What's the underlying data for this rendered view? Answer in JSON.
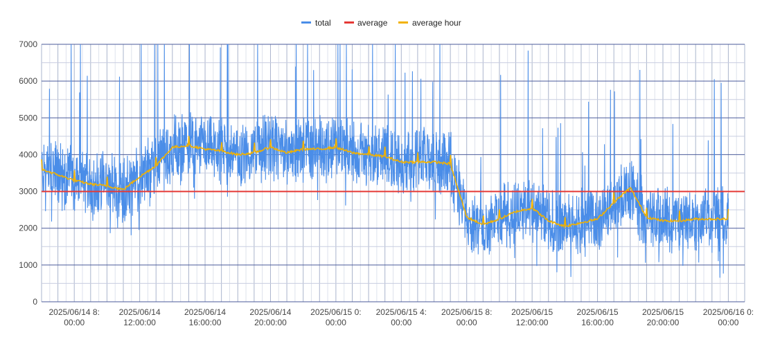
{
  "chart_data": {
    "type": "line",
    "title": "",
    "xlabel": "",
    "ylabel": "",
    "ylim": [
      0,
      7000
    ],
    "yticks": [
      0,
      1000,
      2000,
      3000,
      4000,
      5000,
      6000,
      7000
    ],
    "x_range": [
      "2025/06/14 6:00:00",
      "2025/06/16 1:00:00"
    ],
    "x_ticks": [
      {
        "x": "2025/06/14 8:00:00",
        "line1": "2025/06/14 8:",
        "line2": "00:00"
      },
      {
        "x": "2025/06/14 12:00:00",
        "line1": "2025/06/14",
        "line2": "12:00:00"
      },
      {
        "x": "2025/06/14 16:00:00",
        "line1": "2025/06/14",
        "line2": "16:00:00"
      },
      {
        "x": "2025/06/14 20:00:00",
        "line1": "2025/06/14",
        "line2": "20:00:00"
      },
      {
        "x": "2025/06/15 0:00:00",
        "line1": "2025/06/15 0:",
        "line2": "00:00"
      },
      {
        "x": "2025/06/15 4:00:00",
        "line1": "2025/06/15 4:",
        "line2": "00:00"
      },
      {
        "x": "2025/06/15 8:00:00",
        "line1": "2025/06/15 8:",
        "line2": "00:00"
      },
      {
        "x": "2025/06/15 12:00:00",
        "line1": "2025/06/15",
        "line2": "12:00:00"
      },
      {
        "x": "2025/06/15 16:00:00",
        "line1": "2025/06/15",
        "line2": "16:00:00"
      },
      {
        "x": "2025/06/15 20:00:00",
        "line1": "2025/06/15",
        "line2": "20:00:00"
      },
      {
        "x": "2025/06/16 0:00:00",
        "line1": "2025/06/16 0:",
        "line2": "00:00"
      }
    ],
    "legend_position": "top-center",
    "grid": true,
    "series": [
      {
        "name": "total",
        "color": "#4a8de8",
        "style": "noisy-line",
        "approx_values_hourly": [
          3600,
          3450,
          3300,
          3200,
          3150,
          3050,
          3400,
          3700,
          4200,
          4250,
          4150,
          4100,
          4000,
          4050,
          4200,
          4050,
          4150,
          4150,
          4200,
          4050,
          4000,
          3950,
          3800,
          3800,
          3800,
          3750,
          2300,
          2100,
          2250,
          2450,
          2550,
          2200,
          2050,
          2150,
          2250,
          2700,
          3100,
          2300,
          2200,
          2200,
          2250,
          2250,
          2250
        ]
      },
      {
        "name": "average",
        "color": "#e53935",
        "value": 3000
      },
      {
        "name": "average hour",
        "color": "#f2b200",
        "values_hourly": [
          3600,
          3450,
          3300,
          3200,
          3150,
          3050,
          3400,
          3700,
          4200,
          4250,
          4150,
          4100,
          4000,
          4050,
          4200,
          4050,
          4150,
          4150,
          4200,
          4050,
          4000,
          3950,
          3800,
          3800,
          3800,
          3750,
          2300,
          2100,
          2250,
          2450,
          2550,
          2200,
          2050,
          2150,
          2250,
          2700,
          3100,
          2300,
          2200,
          2200,
          2250,
          2250,
          2250
        ]
      }
    ]
  }
}
